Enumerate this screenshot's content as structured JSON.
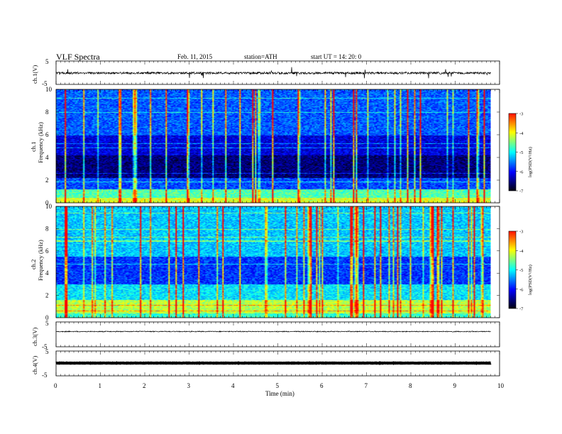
{
  "header": {
    "title": "VLF  Spectra",
    "date": "Feb. 11, 2015",
    "station": "station=ATH",
    "start": "start  UT  =   14: 20: 0"
  },
  "colors": {
    "jet": [
      "#000000",
      "#00007f",
      "#0000ff",
      "#007fff",
      "#00ffff",
      "#7fff7f",
      "#ffff00",
      "#ff7f00",
      "#ff0000",
      "#ffffff"
    ]
  },
  "chart_data": [
    {
      "type": "line",
      "id": "ch1",
      "ylabel": "ch.1(V)",
      "ylim": [
        -5,
        5
      ],
      "yticks": [
        "5",
        "-5"
      ],
      "baseline": 0,
      "description_series": "broadband waveform amplitude vs time"
    },
    {
      "type": "heatmap",
      "id": "ch1_spec",
      "ylabel": [
        "ch.1",
        "Frequency  (kHz)"
      ],
      "ylim": [
        0,
        10
      ],
      "yticks": [
        "0",
        "2",
        "4",
        "6",
        "8",
        "10"
      ],
      "colorbar": {
        "label": "log(PSD(V²/Hz)",
        "range": [
          -7,
          -3
        ],
        "ticks": [
          "-3",
          "-4",
          "-5",
          "-6",
          "-7"
        ]
      }
    },
    {
      "type": "heatmap",
      "id": "ch2_spec",
      "ylabel": [
        "ch.2",
        "Frequency  (kHz)"
      ],
      "ylim": [
        0,
        10
      ],
      "yticks": [
        "0",
        "2",
        "4",
        "6",
        "8",
        "10"
      ],
      "colorbar": {
        "label": "log(PSD(V²/Hz)",
        "range": [
          -7,
          -3
        ],
        "ticks": [
          "-3",
          "-4",
          "-5",
          "-6",
          "-7"
        ]
      }
    },
    {
      "type": "line",
      "id": "ch3",
      "ylabel": "ch.3(V)",
      "ylim": [
        -5,
        5
      ],
      "yticks": [
        "5",
        "-5"
      ],
      "baseline": 0
    },
    {
      "type": "line",
      "id": "ch4",
      "ylabel": "ch.4(V)",
      "ylim": [
        -5,
        5
      ],
      "yticks": [
        "5",
        "-5"
      ],
      "baseline": 0
    }
  ],
  "xaxis": {
    "label": "Time  (min)",
    "xlim": [
      0,
      10
    ],
    "data_end": 9.8,
    "ticks": [
      "0",
      "1",
      "2",
      "3",
      "4",
      "5",
      "6",
      "7",
      "8",
      "9",
      "10"
    ]
  }
}
